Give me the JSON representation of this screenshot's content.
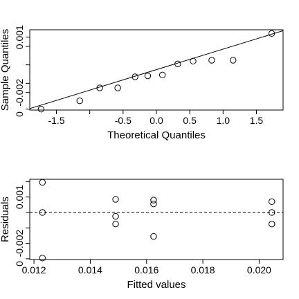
{
  "chart_data": [
    {
      "type": "scatter",
      "name": "normal-qq-plot",
      "xlabel": "Theoretical Quantiles",
      "ylabel": "Sample Quantiles",
      "xlim": [
        -1.9,
        1.9
      ],
      "ylim": [
        -0.00295,
        0.0014
      ],
      "xticks": [
        -1.5,
        -1.0,
        -0.5,
        0.0,
        0.5,
        1.0,
        1.5
      ],
      "xtick_labels": [
        "-1.5",
        "",
        "-0.5",
        "0.0",
        "0.5",
        "1.0",
        "1.5"
      ],
      "yticks": [
        -0.002,
        0.001
      ],
      "ytick_labels": [
        "-0.002",
        "0.001"
      ],
      "y_minor_ticks": [
        -0.0029,
        -0.0015,
        -0.0005,
        0.0005
      ],
      "y_edge_label": "0",
      "grid": false,
      "points": {
        "x": [
          -1.73,
          -1.15,
          -0.85,
          -0.58,
          -0.32,
          -0.13,
          0.09,
          0.32,
          0.55,
          0.83,
          1.15,
          1.73
        ],
        "y": [
          -0.0029,
          -0.00245,
          -0.00175,
          -0.00175,
          -0.00115,
          -0.0011,
          -0.00105,
          -0.00045,
          -0.0003,
          -0.00025,
          -0.00025,
          0.0012
        ]
      },
      "reference_line": {
        "x": [
          -1.9,
          1.9
        ],
        "y": [
          -0.00287,
          0.00135
        ]
      }
    },
    {
      "type": "scatter",
      "name": "residuals-vs-fitted",
      "xlabel": "Fitted values",
      "ylabel": "Residuals",
      "xlim": [
        0.01185,
        0.02085
      ],
      "ylim": [
        -0.00305,
        0.00215
      ],
      "xticks": [
        0.012,
        0.014,
        0.016,
        0.018,
        0.02
      ],
      "xtick_labels": [
        "0.012",
        "0.014",
        "0.016",
        "0.018",
        "0.020"
      ],
      "yticks": [
        -0.002,
        0.001
      ],
      "ytick_labels": [
        "-0.002",
        "0.001"
      ],
      "y_minor_ticks": [
        -0.003,
        -0.001,
        0.0,
        0.002
      ],
      "y_edge_label": "0",
      "grid": false,
      "points": {
        "x": [
          0.0123,
          0.0123,
          0.0123,
          0.0149,
          0.0149,
          0.0149,
          0.01625,
          0.01625,
          0.01625,
          0.02045,
          0.02045,
          0.02045
        ],
        "y": [
          0.00195,
          0.0,
          -0.00295,
          0.00085,
          -0.00025,
          -0.00075,
          0.0008,
          0.00055,
          -0.00155,
          0.0007,
          0.0,
          -0.00075
        ]
      },
      "zero_line": 0
    }
  ]
}
